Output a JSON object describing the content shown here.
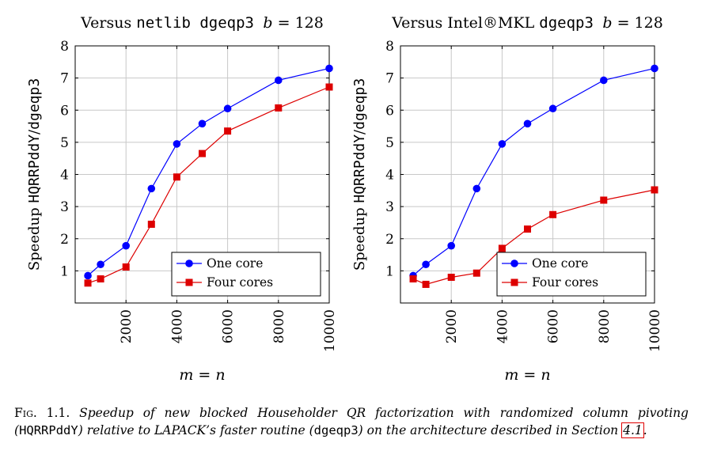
{
  "chart_data": [
    {
      "type": "line",
      "title": "Versus netlib dgeqp3 b = 128",
      "title_parts": {
        "prefix": "Versus ",
        "lib": "netlib",
        "routine": "dgeqp3",
        "b_label": "b",
        "b_eq": "= 128"
      },
      "xlabel": "m = n",
      "ylabel": "Speedup HQRRPddY/dgeqp3",
      "ylabel_parts": {
        "word": "Speedup",
        "num": "HQRRPddY",
        "den": "dgeqp3"
      },
      "xlim": [
        0,
        10000
      ],
      "ylim": [
        0,
        8
      ],
      "xticks": [
        2000,
        4000,
        6000,
        8000,
        10000
      ],
      "yticks": [
        1,
        2,
        3,
        4,
        5,
        6,
        7,
        8
      ],
      "grid": true,
      "legend": "bottom-right",
      "series": [
        {
          "name": "One core",
          "color": "#0000ff",
          "marker": "circle",
          "x": [
            500,
            1000,
            2000,
            3000,
            4000,
            5000,
            6000,
            8000,
            10000
          ],
          "y": [
            0.85,
            1.2,
            1.78,
            3.56,
            4.95,
            5.58,
            6.05,
            6.93,
            7.3
          ]
        },
        {
          "name": "Four cores",
          "color": "#dd0000",
          "marker": "square",
          "x": [
            500,
            1000,
            2000,
            3000,
            4000,
            5000,
            6000,
            8000,
            10000
          ],
          "y": [
            0.62,
            0.75,
            1.12,
            2.45,
            3.92,
            4.65,
            5.35,
            6.07,
            6.72
          ]
        }
      ]
    },
    {
      "type": "line",
      "title": "Versus Intel®MKL dgeqp3 b = 128",
      "title_parts": {
        "prefix": "Versus ",
        "lib": "Intel®MKL",
        "routine": "dgeqp3",
        "b_label": "b",
        "b_eq": "= 128"
      },
      "xlabel": "m = n",
      "ylabel": "Speedup HQRRPddY/dgeqp3",
      "ylabel_parts": {
        "word": "Speedup",
        "num": "HQRRPddY",
        "den": "dgeqp3"
      },
      "xlim": [
        0,
        10000
      ],
      "ylim": [
        0,
        8
      ],
      "xticks": [
        2000,
        4000,
        6000,
        8000,
        10000
      ],
      "yticks": [
        1,
        2,
        3,
        4,
        5,
        6,
        7,
        8
      ],
      "grid": true,
      "legend": "bottom-right",
      "series": [
        {
          "name": "One core",
          "color": "#0000ff",
          "marker": "circle",
          "x": [
            500,
            1000,
            2000,
            3000,
            4000,
            5000,
            6000,
            8000,
            10000
          ],
          "y": [
            0.85,
            1.2,
            1.78,
            3.56,
            4.95,
            5.58,
            6.05,
            6.93,
            7.3
          ]
        },
        {
          "name": "Four cores",
          "color": "#dd0000",
          "marker": "square",
          "x": [
            500,
            1000,
            2000,
            3000,
            4000,
            5000,
            6000,
            8000,
            10000
          ],
          "y": [
            0.75,
            0.58,
            0.8,
            0.93,
            1.7,
            2.3,
            2.75,
            3.2,
            3.52
          ]
        }
      ]
    }
  ],
  "caption": {
    "label": "Fig. 1.1.",
    "part1": "Speedup of new blocked Householder QR factorization with randomized column pivoting (",
    "code1": "HQRRPddY",
    "part2": ") relative to LAPACK’s faster routine (",
    "code2": "dgeqp3",
    "part3": ") on the architecture described in Section ",
    "ref": "4.1",
    "part4": "."
  }
}
